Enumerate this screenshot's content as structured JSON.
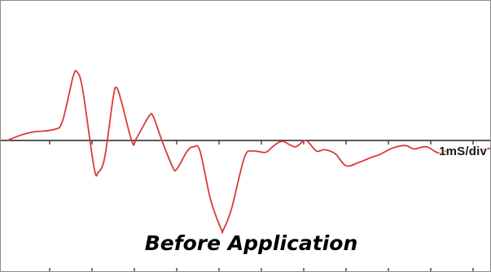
{
  "chart_data": {
    "type": "line",
    "title": "Before Application",
    "scale_label": "1mS/div",
    "xlabel": "",
    "ylabel": "",
    "xlim": [
      0,
      11.6
    ],
    "ylim": [
      -3.3,
      3.3
    ],
    "grid": false,
    "line_color": "#d93a3a",
    "axis_color": "#222222",
    "series": [
      {
        "points": [
          [
            0.0,
            0.0
          ],
          [
            0.3,
            0.12
          ],
          [
            0.6,
            0.2
          ],
          [
            1.1,
            0.26
          ],
          [
            1.3,
            0.45
          ],
          [
            1.55,
            1.5
          ],
          [
            1.65,
            1.62
          ],
          [
            1.78,
            1.2
          ],
          [
            2.05,
            -0.65
          ],
          [
            2.15,
            -0.75
          ],
          [
            2.3,
            -0.4
          ],
          [
            2.5,
            1.02
          ],
          [
            2.58,
            1.25
          ],
          [
            2.7,
            0.9
          ],
          [
            2.95,
            -0.05
          ],
          [
            3.05,
            0.05
          ],
          [
            3.35,
            0.58
          ],
          [
            3.45,
            0.56
          ],
          [
            3.65,
            0.0
          ],
          [
            3.9,
            -0.62
          ],
          [
            4.0,
            -0.68
          ],
          [
            4.25,
            -0.25
          ],
          [
            4.4,
            -0.15
          ],
          [
            4.55,
            -0.25
          ],
          [
            4.8,
            -1.4
          ],
          [
            5.05,
            -2.1
          ],
          [
            5.1,
            -2.12
          ],
          [
            5.3,
            -1.6
          ],
          [
            5.6,
            -0.4
          ],
          [
            5.8,
            -0.25
          ],
          [
            6.1,
            -0.28
          ],
          [
            6.3,
            -0.12
          ],
          [
            6.5,
            -0.02
          ],
          [
            6.8,
            -0.15
          ],
          [
            7.05,
            0.0
          ],
          [
            7.3,
            -0.25
          ],
          [
            7.5,
            -0.22
          ],
          [
            7.75,
            -0.32
          ],
          [
            8.0,
            -0.6
          ],
          [
            8.3,
            -0.52
          ],
          [
            8.6,
            -0.4
          ],
          [
            8.8,
            -0.33
          ],
          [
            9.1,
            -0.18
          ],
          [
            9.4,
            -0.12
          ],
          [
            9.6,
            -0.2
          ],
          [
            9.9,
            -0.15
          ],
          [
            10.2,
            -0.3
          ],
          [
            10.5,
            -0.2
          ],
          [
            10.8,
            -0.26
          ],
          [
            11.2,
            -0.22
          ],
          [
            11.6,
            -0.15
          ]
        ]
      }
    ]
  }
}
